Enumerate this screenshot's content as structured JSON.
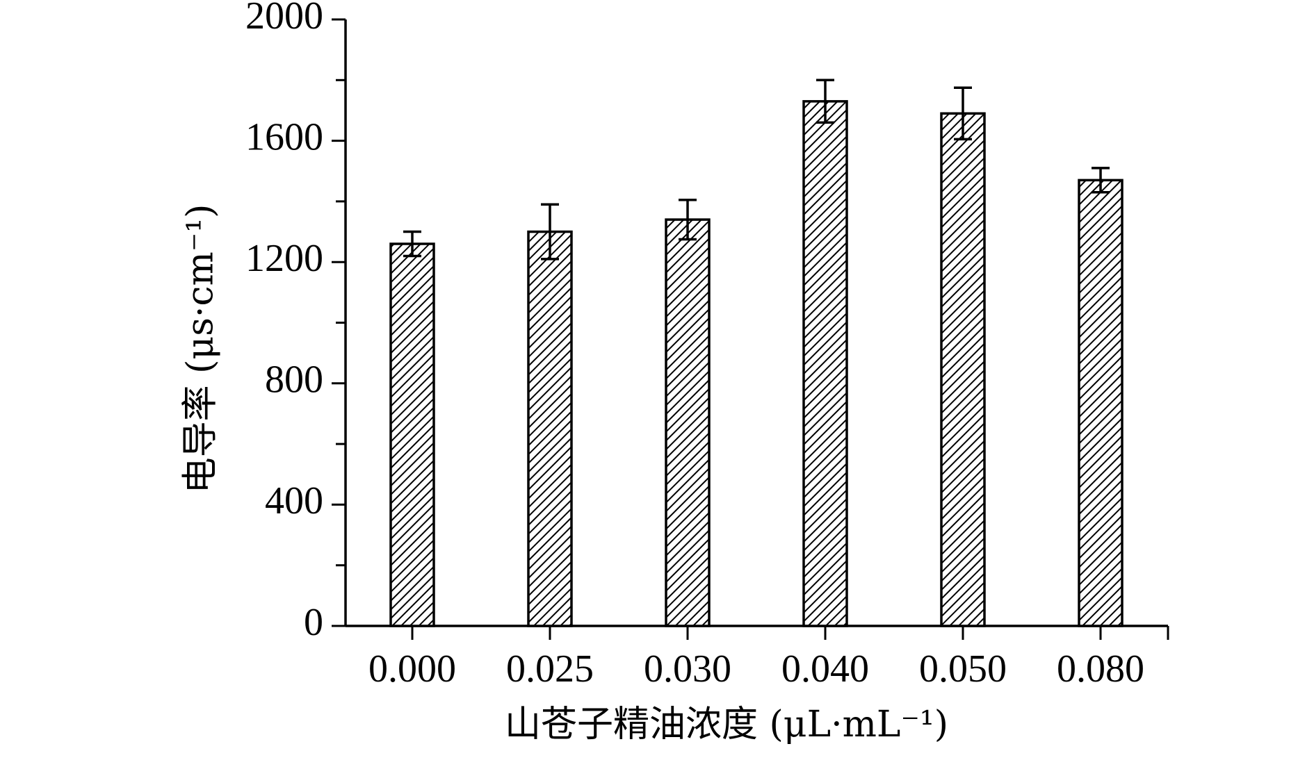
{
  "chart_data": {
    "type": "bar",
    "categories": [
      "0.000",
      "0.025",
      "0.030",
      "0.040",
      "0.050",
      "0.080"
    ],
    "values": [
      1260,
      1300,
      1340,
      1730,
      1690,
      1470
    ],
    "errors": [
      40,
      90,
      65,
      70,
      85,
      40
    ],
    "xlabel": "山苍子精油浓度 (μL·mL⁻¹)",
    "ylabel": "电导率 (μs·cm⁻¹)",
    "ylim": [
      0,
      2000
    ],
    "yticks": [
      0,
      400,
      800,
      1200,
      1600,
      2000
    ],
    "grid": false,
    "bar_pattern": "diagonal-hatch",
    "bar_color": "#000000"
  }
}
